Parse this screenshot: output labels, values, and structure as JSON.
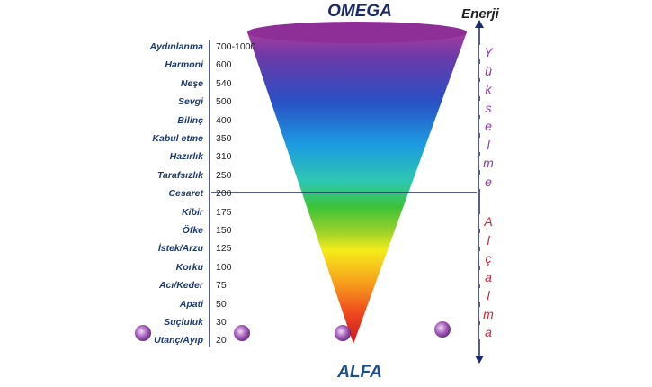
{
  "diagram": {
    "top_label": "OMEGA",
    "bottom_label": "ALFA",
    "axis_label": "Enerji",
    "rising_label": [
      "Y",
      "ü",
      "k",
      "s",
      "e",
      "l",
      "m",
      "e"
    ],
    "falling_label": [
      "A",
      "l",
      "ç",
      "a",
      "l",
      "m",
      "a"
    ],
    "threshold_value": 200,
    "colors": {
      "rising": "#8b3aa8",
      "falling": "#d81e2c",
      "axis": "#1e2a6a",
      "text_dark": "#1e3a6e"
    },
    "levels": [
      {
        "name": "Aydınlanma",
        "value": "700-1000"
      },
      {
        "name": "Harmoni",
        "value": "600"
      },
      {
        "name": "Neşe",
        "value": "540"
      },
      {
        "name": "Sevgi",
        "value": "500"
      },
      {
        "name": "Bilinç",
        "value": "400"
      },
      {
        "name": "Kabul etme",
        "value": "350"
      },
      {
        "name": "Hazırlık",
        "value": "310"
      },
      {
        "name": "Tarafsızlık",
        "value": "250"
      },
      {
        "name": "Cesaret",
        "value": "200"
      },
      {
        "name": "Kibir",
        "value": "175"
      },
      {
        "name": "Öfke",
        "value": "150"
      },
      {
        "name": "İstek/Arzu",
        "value": "125"
      },
      {
        "name": "Korku",
        "value": "100"
      },
      {
        "name": "Acı/Keder",
        "value": "75"
      },
      {
        "name": "Apati",
        "value": "50"
      },
      {
        "name": "Suçluluk",
        "value": "30"
      },
      {
        "name": "Utanç/Ayıp",
        "value": "20"
      }
    ]
  }
}
